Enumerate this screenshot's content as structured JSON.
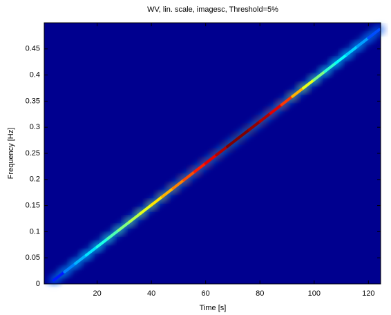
{
  "chart_data": {
    "type": "image",
    "title": "WV, lin. scale, imagesc, Threshold=5%",
    "x_label": "Time [s]",
    "y_label": "Frequency [Hz]",
    "background": "#00008f",
    "colormap": "jet",
    "x": [
      4,
      8,
      12,
      16,
      20,
      24,
      28,
      32,
      36,
      40,
      44,
      48,
      52,
      56,
      60,
      64,
      68,
      72,
      76,
      80,
      84,
      88,
      92,
      96,
      100,
      104,
      108,
      112,
      116,
      120,
      124
    ],
    "series": [
      {
        "values": [
          0.007,
          0.023,
          0.039,
          0.055,
          0.071,
          0.087,
          0.103,
          0.119,
          0.135,
          0.151,
          0.167,
          0.183,
          0.199,
          0.215,
          0.231,
          0.247,
          0.263,
          0.279,
          0.295,
          0.311,
          0.327,
          0.343,
          0.359,
          0.375,
          0.391,
          0.407,
          0.423,
          0.439,
          0.455,
          0.471,
          0.487
        ],
        "intensity": [
          0.15,
          0.25,
          0.3,
          0.35,
          0.4,
          0.45,
          0.5,
          0.55,
          0.6,
          0.65,
          0.7,
          0.75,
          0.8,
          0.85,
          0.9,
          0.95,
          1,
          1,
          0.98,
          0.95,
          0.9,
          0.82,
          0.7,
          0.6,
          0.5,
          0.42,
          0.38,
          0.33,
          0.28,
          0.2,
          0.1
        ]
      }
    ],
    "xlim": [
      0.5,
      124.5
    ],
    "ylim": [
      0,
      0.5
    ],
    "xticks": [
      20,
      40,
      60,
      80,
      100,
      120
    ],
    "yticks": [
      0,
      0.05,
      0.1,
      0.15,
      0.2,
      0.25,
      0.3,
      0.35,
      0.4,
      0.45
    ]
  }
}
